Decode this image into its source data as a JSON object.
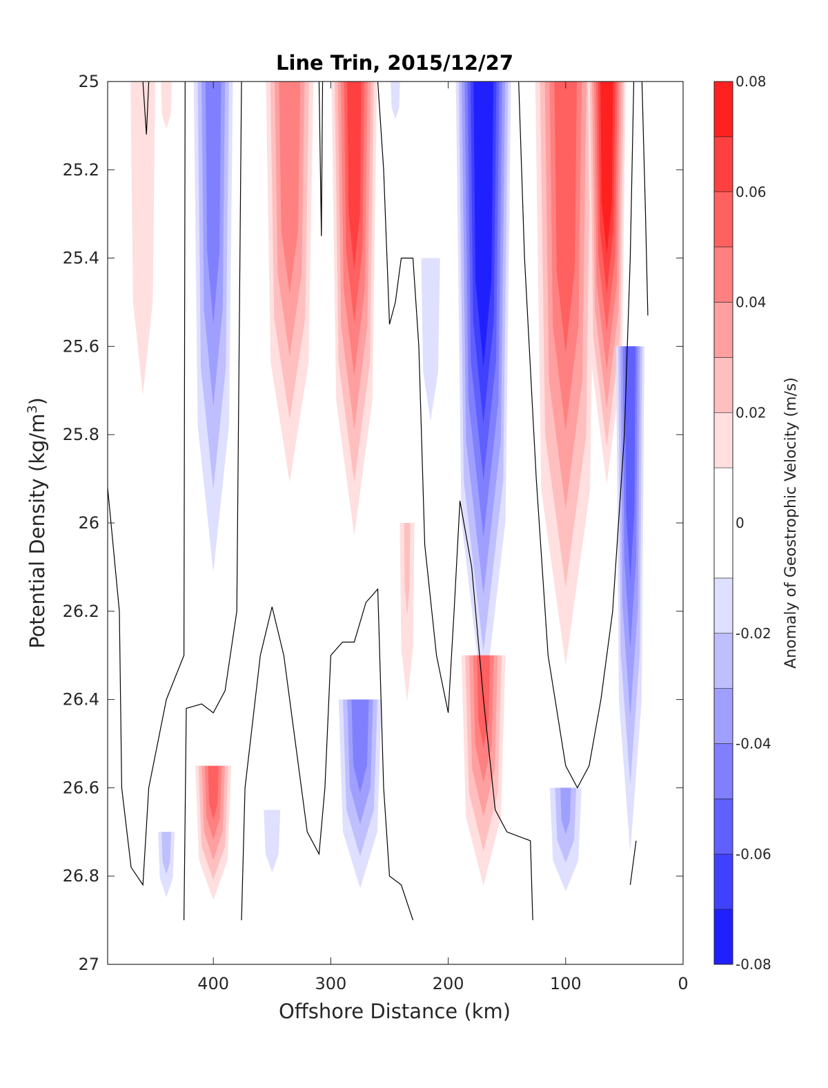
{
  "chart_data": {
    "type": "heatmap",
    "title": "Line Trin, 2015/12/27",
    "xlabel": "Offshore Distance (km)",
    "ylabel_main": "Potential Density (kg/m",
    "ylabel_sup": "3",
    "ylabel_close": ")",
    "colorbar_label": "Anomaly of Geostrophic Velocity (m/s)",
    "xlim": [
      490,
      0
    ],
    "ylim": [
      25,
      27
    ],
    "x_reversed": true,
    "y_reversed": true,
    "x_ticks": [
      400,
      300,
      200,
      100,
      0
    ],
    "x_tick_labels": [
      "400",
      "300",
      "200",
      "100",
      "0"
    ],
    "y_ticks": [
      25,
      25.2,
      25.4,
      25.6,
      25.8,
      26,
      26.2,
      26.4,
      26.6,
      26.8,
      27
    ],
    "y_tick_labels": [
      "25",
      "25.2",
      "25.4",
      "25.6",
      "25.8",
      "26",
      "26.2",
      "26.4",
      "26.6",
      "26.8",
      "27"
    ],
    "colorbar_range": [
      -0.08,
      0.08
    ],
    "colorbar_levels": [
      -0.08,
      -0.07,
      -0.06,
      -0.05,
      -0.04,
      -0.03,
      -0.02,
      -0.01,
      0.01,
      0.02,
      0.03,
      0.04,
      0.05,
      0.06,
      0.07,
      0.08
    ],
    "colorbar_ticks": [
      0.08,
      0.06,
      0.04,
      0.02,
      0,
      -0.02,
      -0.04,
      -0.06,
      -0.08
    ],
    "colorbar_tick_labels": [
      "0.08",
      "0.06",
      "0.04",
      "0.02",
      "0",
      "-0.02",
      "-0.04",
      "-0.06",
      "-0.08"
    ],
    "colormap": {
      "negative": "#0000ff",
      "zero": "#ffffff",
      "positive": "#ff0000"
    },
    "data_extent": {
      "x": [
        490,
        30
      ],
      "y": [
        25,
        26.9
      ]
    },
    "grid": false,
    "features": [
      {
        "kind": "positive",
        "x": 460,
        "y_top": 25.0,
        "y_bottom": 26.55,
        "amp": 0.012,
        "width": 28
      },
      {
        "kind": "positive",
        "x": 440,
        "y_top": 25.0,
        "y_bottom": 25.2,
        "amp": 0.014,
        "width": 10
      },
      {
        "kind": "negative",
        "x": 400,
        "y_top": 25.0,
        "y_bottom": 26.3,
        "amp": -0.045,
        "width": 20
      },
      {
        "kind": "negative",
        "x": 440,
        "y_top": 26.7,
        "y_bottom": 26.9,
        "amp": -0.025,
        "width": 10
      },
      {
        "kind": "positive",
        "x": 400,
        "y_top": 26.55,
        "y_bottom": 26.9,
        "amp": 0.05,
        "width": 18
      },
      {
        "kind": "positive",
        "x": 335,
        "y_top": 25.0,
        "y_bottom": 26.05,
        "amp": 0.048,
        "width": 24
      },
      {
        "kind": "positive",
        "x": 280,
        "y_top": 25.0,
        "y_bottom": 26.15,
        "amp": 0.062,
        "width": 22
      },
      {
        "kind": "negative",
        "x": 350,
        "y_top": 26.65,
        "y_bottom": 26.9,
        "amp": -0.015,
        "width": 14
      },
      {
        "kind": "negative",
        "x": 275,
        "y_top": 26.4,
        "y_bottom": 26.9,
        "amp": -0.045,
        "width": 22
      },
      {
        "kind": "negative",
        "x": 245,
        "y_top": 25.0,
        "y_bottom": 25.15,
        "amp": -0.015,
        "width": 8
      },
      {
        "kind": "positive",
        "x": 235,
        "y_top": 26.0,
        "y_bottom": 26.6,
        "amp": 0.02,
        "width": 10
      },
      {
        "kind": "negative",
        "x": 215,
        "y_top": 25.4,
        "y_bottom": 26.05,
        "amp": -0.015,
        "width": 16
      },
      {
        "kind": "negative",
        "x": 170,
        "y_top": 25.0,
        "y_bottom": 26.55,
        "amp": -0.078,
        "width": 26
      },
      {
        "kind": "positive",
        "x": 170,
        "y_top": 26.3,
        "y_bottom": 26.9,
        "amp": 0.05,
        "width": 22
      },
      {
        "kind": "positive",
        "x": 100,
        "y_top": 25.0,
        "y_bottom": 26.5,
        "amp": 0.055,
        "width": 30
      },
      {
        "kind": "positive",
        "x": 65,
        "y_top": 25.0,
        "y_bottom": 26.0,
        "amp": 0.075,
        "width": 18
      },
      {
        "kind": "negative",
        "x": 45,
        "y_top": 25.6,
        "y_bottom": 26.9,
        "amp": -0.055,
        "width": 14
      },
      {
        "kind": "negative",
        "x": 100,
        "y_top": 26.6,
        "y_bottom": 26.9,
        "amp": -0.03,
        "width": 18
      }
    ]
  }
}
